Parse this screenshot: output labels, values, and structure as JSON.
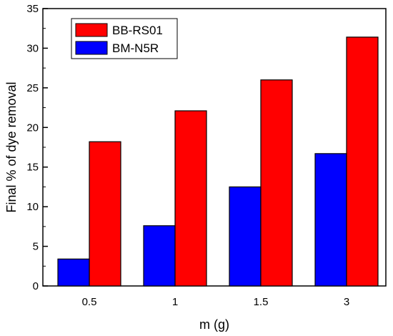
{
  "chart_data": {
    "type": "bar",
    "title": "",
    "xlabel": "m (g)",
    "ylabel": "Final % of dye removal",
    "categories": [
      "0.5",
      "1",
      "1.5",
      "3"
    ],
    "ylim": [
      0,
      35
    ],
    "yticks": [
      0,
      5,
      10,
      15,
      20,
      25,
      30,
      35
    ],
    "grid": false,
    "legend_position": "top-left",
    "series": [
      {
        "name": "BM-N5R",
        "values": [
          3.4,
          7.6,
          12.5,
          16.7
        ],
        "color": "#0000ff"
      },
      {
        "name": "BB-RS01",
        "values": [
          18.2,
          22.1,
          26.0,
          31.4
        ],
        "color": "#ff0000"
      }
    ],
    "legend": [
      {
        "name": "BB-RS01",
        "color": "#ff0000"
      },
      {
        "name": "BM-N5R",
        "color": "#0000ff"
      }
    ]
  }
}
